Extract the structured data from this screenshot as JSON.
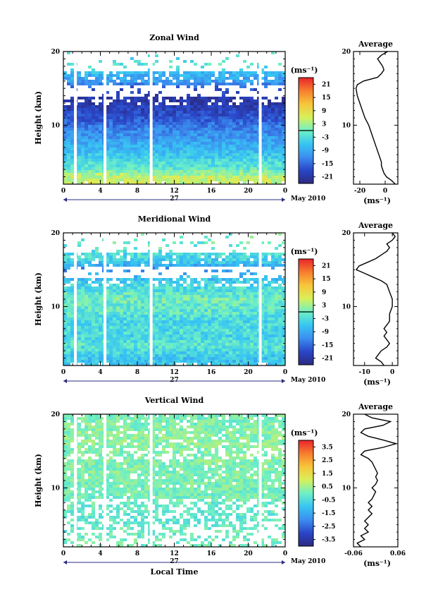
{
  "chart_data": [
    {
      "type": "heatmap",
      "title": "Zonal Wind",
      "ylabel": "Height (km)",
      "xlabel": "",
      "ylim": [
        2,
        20
      ],
      "xlim": [
        0,
        24
      ],
      "yticks": [
        "20",
        "10"
      ],
      "xticks": [
        "0",
        "4",
        "8",
        "12",
        "16",
        "20",
        "0"
      ],
      "day_label": "27",
      "month_label": "May 2010",
      "colorbar": {
        "unit": "(ms⁻¹)",
        "ticks": [
          "21",
          "15",
          "9",
          "3",
          "-3",
          "-9",
          "-15",
          "-21"
        ],
        "range": [
          -24,
          24
        ],
        "zero_line": true
      },
      "data_gaps_hours": [
        1.3,
        4.5,
        9.5,
        21.3
      ],
      "profiles": [
        {
          "y_km": 3,
          "value": 5
        },
        {
          "y_km": 4,
          "value": -1
        },
        {
          "y_km": 5,
          "value": -3
        },
        {
          "y_km": 6,
          "value": -6
        },
        {
          "y_km": 7,
          "value": -8
        },
        {
          "y_km": 8,
          "value": -10
        },
        {
          "y_km": 9,
          "value": -12
        },
        {
          "y_km": 10,
          "value": -14
        },
        {
          "y_km": 11,
          "value": -17
        },
        {
          "y_km": 12,
          "value": -19
        },
        {
          "y_km": 13,
          "value": -21
        },
        {
          "y_km": 14,
          "value": -20
        },
        {
          "y_km": 15,
          "value": -17
        },
        {
          "y_km": 16,
          "value": -10
        },
        {
          "y_km": 17,
          "value": -8
        },
        {
          "y_km": 18,
          "value": -2
        },
        {
          "y_km": 19,
          "value": -3
        }
      ],
      "average": {
        "title": "Average",
        "unit": "(ms⁻¹)",
        "xticks": [
          "-20",
          "0"
        ],
        "yticks": [
          "20",
          "10"
        ],
        "xlim": [
          -25,
          10
        ],
        "profile": [
          {
            "y": 2.0,
            "x": 8
          },
          {
            "y": 2.5,
            "x": 5
          },
          {
            "y": 3.0,
            "x": 1
          },
          {
            "y": 3.5,
            "x": -1
          },
          {
            "y": 4.0,
            "x": -2
          },
          {
            "y": 4.5,
            "x": -3
          },
          {
            "y": 5.0,
            "x": -3
          },
          {
            "y": 5.5,
            "x": -4
          },
          {
            "y": 6.0,
            "x": -5
          },
          {
            "y": 7.0,
            "x": -7
          },
          {
            "y": 8.0,
            "x": -9
          },
          {
            "y": 9.0,
            "x": -11
          },
          {
            "y": 10.0,
            "x": -13
          },
          {
            "y": 11.0,
            "x": -16
          },
          {
            "y": 12.0,
            "x": -18
          },
          {
            "y": 13.0,
            "x": -20
          },
          {
            "y": 14.0,
            "x": -22
          },
          {
            "y": 15.0,
            "x": -23
          },
          {
            "y": 15.5,
            "x": -22
          },
          {
            "y": 16.0,
            "x": -17
          },
          {
            "y": 16.5,
            "x": -6
          },
          {
            "y": 17.0,
            "x": -3
          },
          {
            "y": 17.5,
            "x": -1
          },
          {
            "y": 18.0,
            "x": -2
          },
          {
            "y": 18.5,
            "x": -4
          },
          {
            "y": 19.0,
            "x": -6
          },
          {
            "y": 19.5,
            "x": -3
          },
          {
            "y": 20.0,
            "x": 2
          }
        ]
      }
    },
    {
      "type": "heatmap",
      "title": "Meridional Wind",
      "ylabel": "Height (km)",
      "xlabel": "",
      "ylim": [
        2,
        20
      ],
      "xlim": [
        0,
        24
      ],
      "yticks": [
        "20",
        "10"
      ],
      "xticks": [
        "0",
        "4",
        "8",
        "12",
        "16",
        "20",
        "0"
      ],
      "day_label": "27",
      "month_label": "May 2010",
      "colorbar": {
        "unit": "(ms⁻¹)",
        "ticks": [
          "21",
          "15",
          "9",
          "3",
          "-3",
          "-9",
          "-15",
          "-21"
        ],
        "range": [
          -24,
          24
        ],
        "zero_line": true
      },
      "data_gaps_hours": [
        1.3,
        4.5,
        9.5,
        21.3
      ],
      "profiles": [
        {
          "y_km": 3,
          "value": -6
        },
        {
          "y_km": 4,
          "value": -3
        },
        {
          "y_km": 5,
          "value": -2
        },
        {
          "y_km": 6,
          "value": -4
        },
        {
          "y_km": 7,
          "value": -3
        },
        {
          "y_km": 8,
          "value": -4
        },
        {
          "y_km": 9,
          "value": -2
        },
        {
          "y_km": 10,
          "value": -1
        },
        {
          "y_km": 11,
          "value": 0
        },
        {
          "y_km": 12,
          "value": -2
        },
        {
          "y_km": 13,
          "value": -4
        },
        {
          "y_km": 14,
          "value": -7
        },
        {
          "y_km": 15,
          "value": -12
        },
        {
          "y_km": 16,
          "value": -6
        },
        {
          "y_km": 17,
          "value": -3
        },
        {
          "y_km": 18,
          "value": -1
        },
        {
          "y_km": 19,
          "value": 0
        }
      ],
      "average": {
        "title": "Average",
        "unit": "(ms⁻¹)",
        "xticks": [
          "-10",
          "0"
        ],
        "yticks": [
          "20",
          "10"
        ],
        "xlim": [
          -14,
          2
        ],
        "profile": [
          {
            "y": 2.0,
            "x": -3
          },
          {
            "y": 2.5,
            "x": -4
          },
          {
            "y": 3.0,
            "x": -6
          },
          {
            "y": 3.5,
            "x": -5
          },
          {
            "y": 4.0,
            "x": -4
          },
          {
            "y": 4.5,
            "x": -2
          },
          {
            "y": 5.0,
            "x": -1
          },
          {
            "y": 5.5,
            "x": -2
          },
          {
            "y": 6.0,
            "x": -3
          },
          {
            "y": 6.5,
            "x": -2
          },
          {
            "y": 7.0,
            "x": -3
          },
          {
            "y": 7.5,
            "x": -2
          },
          {
            "y": 8.0,
            "x": -1
          },
          {
            "y": 9.0,
            "x": -1
          },
          {
            "y": 10.0,
            "x": 0
          },
          {
            "y": 11.0,
            "x": 0
          },
          {
            "y": 12.0,
            "x": -1
          },
          {
            "y": 13.0,
            "x": -2
          },
          {
            "y": 13.5,
            "x": -4
          },
          {
            "y": 14.0,
            "x": -7
          },
          {
            "y": 14.5,
            "x": -10
          },
          {
            "y": 15.0,
            "x": -13
          },
          {
            "y": 15.5,
            "x": -12
          },
          {
            "y": 16.0,
            "x": -9
          },
          {
            "y": 16.5,
            "x": -6
          },
          {
            "y": 17.0,
            "x": -4
          },
          {
            "y": 17.5,
            "x": -2
          },
          {
            "y": 18.0,
            "x": -1
          },
          {
            "y": 18.5,
            "x": -2
          },
          {
            "y": 19.0,
            "x": 0
          },
          {
            "y": 19.5,
            "x": 1
          },
          {
            "y": 20.0,
            "x": 0
          }
        ]
      }
    },
    {
      "type": "heatmap",
      "title": "Vertical Wind",
      "ylabel": "Height (km)",
      "xlabel": "Local Time",
      "ylim": [
        2,
        20
      ],
      "xlim": [
        0,
        24
      ],
      "yticks": [
        "20",
        "10"
      ],
      "xticks": [
        "0",
        "4",
        "8",
        "12",
        "16",
        "20",
        "0"
      ],
      "day_label": "27",
      "month_label": "May 2010",
      "colorbar": {
        "unit": "(ms⁻¹)",
        "ticks": [
          "3.5",
          "2.5",
          "1.5",
          "0.5",
          "-0.5",
          "-1.5",
          "-2.5",
          "-3.5"
        ],
        "range": [
          -4,
          4
        ],
        "zero_line": false
      },
      "data_gaps_hours": [
        1.3,
        4.5,
        9.5,
        21.3
      ],
      "profiles": [
        {
          "y_km": 3,
          "value": 0.0
        },
        {
          "y_km": 6,
          "value": -0.2
        },
        {
          "y_km": 10,
          "value": 0.1
        },
        {
          "y_km": 14,
          "value": 0.2
        },
        {
          "y_km": 17,
          "value": 0.3
        },
        {
          "y_km": 19,
          "value": 0.1
        }
      ],
      "average": {
        "title": "Average",
        "unit": "(ms⁻¹)",
        "xticks": [
          "-0.06",
          "0.06"
        ],
        "yticks": [
          "20",
          "10"
        ],
        "xlim": [
          -0.06,
          0.06
        ],
        "profile": [
          {
            "y": 2.0,
            "x": -0.04
          },
          {
            "y": 2.5,
            "x": -0.05
          },
          {
            "y": 3.0,
            "x": -0.03
          },
          {
            "y": 3.5,
            "x": -0.04
          },
          {
            "y": 4.0,
            "x": -0.02
          },
          {
            "y": 4.5,
            "x": -0.03
          },
          {
            "y": 5.0,
            "x": -0.02
          },
          {
            "y": 5.5,
            "x": -0.03
          },
          {
            "y": 6.0,
            "x": -0.02
          },
          {
            "y": 6.5,
            "x": -0.01
          },
          {
            "y": 7.0,
            "x": -0.02
          },
          {
            "y": 7.5,
            "x": -0.01
          },
          {
            "y": 8.0,
            "x": -0.02
          },
          {
            "y": 8.5,
            "x": -0.01
          },
          {
            "y": 9.0,
            "x": -0.005
          },
          {
            "y": 9.5,
            "x": 0.0
          },
          {
            "y": 10.0,
            "x": -0.01
          },
          {
            "y": 10.5,
            "x": 0.0
          },
          {
            "y": 11.0,
            "x": 0.005
          },
          {
            "y": 11.5,
            "x": 0.0
          },
          {
            "y": 12.0,
            "x": 0.005
          },
          {
            "y": 12.5,
            "x": 0.0
          },
          {
            "y": 13.0,
            "x": -0.005
          },
          {
            "y": 13.5,
            "x": -0.01
          },
          {
            "y": 14.0,
            "x": -0.02
          },
          {
            "y": 14.5,
            "x": -0.04
          },
          {
            "y": 15.0,
            "x": -0.03
          },
          {
            "y": 15.5,
            "x": 0.02
          },
          {
            "y": 16.0,
            "x": 0.055
          },
          {
            "y": 16.5,
            "x": 0.02
          },
          {
            "y": 17.0,
            "x": -0.02
          },
          {
            "y": 17.5,
            "x": -0.04
          },
          {
            "y": 18.0,
            "x": -0.03
          },
          {
            "y": 18.5,
            "x": 0.02
          },
          {
            "y": 19.0,
            "x": 0.04
          },
          {
            "y": 19.5,
            "x": -0.01
          },
          {
            "y": 20.0,
            "x": -0.03
          }
        ]
      }
    }
  ]
}
